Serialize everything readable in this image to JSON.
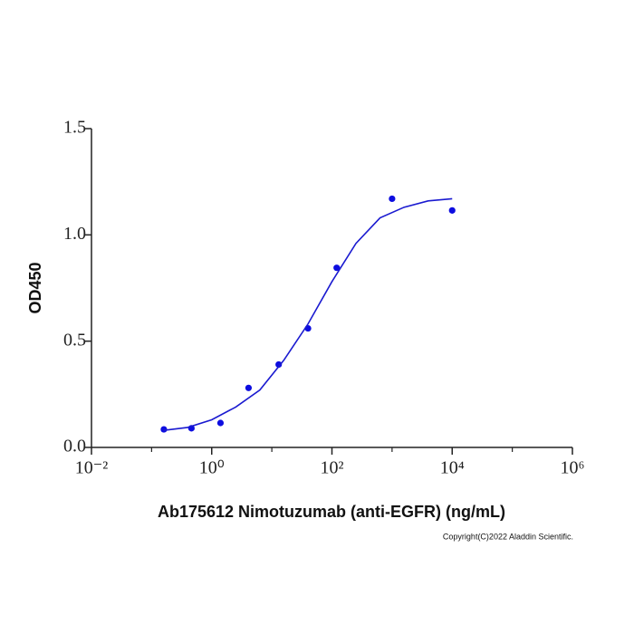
{
  "chart_data": {
    "type": "scatter",
    "x_label": "Ab175612 Nimotuzumab (anti-EGFR) (ng/mL)",
    "y_label": "OD450",
    "annotation": "Copyright(C)2022 Aladdin Scientific.",
    "xscale": "log",
    "xlim": [
      0.01,
      1000000
    ],
    "xticks": [
      {
        "value": 0.01,
        "label": "10⁻²"
      },
      {
        "value": 1,
        "label": "10⁰"
      },
      {
        "value": 100,
        "label": "10²"
      },
      {
        "value": 10000,
        "label": "10⁴"
      },
      {
        "value": 1000000,
        "label": "10⁶"
      }
    ],
    "xminor_ticks": [
      0.1,
      10,
      1000,
      100000
    ],
    "ylim": [
      0,
      1.5
    ],
    "yticks": [
      {
        "value": 0,
        "label": "0.0"
      },
      0.5,
      {
        "value": 1,
        "label": "1.0"
      },
      1.5
    ],
    "series": [
      {
        "type": "scatter",
        "color": "#0d0de0",
        "x": [
          0.16,
          0.46,
          1.4,
          4.1,
          13,
          40,
          120,
          1000,
          10000
        ],
        "values": [
          0.085,
          0.09,
          0.115,
          0.28,
          0.39,
          0.56,
          0.845,
          1.17,
          1.115
        ]
      },
      {
        "type": "line",
        "color": "#1a1ad0",
        "x": [
          0.158,
          0.398,
          1,
          2.51,
          6.31,
          15.8,
          39.8,
          100,
          251,
          631,
          1585,
          3981,
          10000
        ],
        "values": [
          0.08,
          0.094,
          0.13,
          0.19,
          0.27,
          0.41,
          0.58,
          0.78,
          0.96,
          1.08,
          1.13,
          1.16,
          1.17
        ]
      }
    ]
  }
}
